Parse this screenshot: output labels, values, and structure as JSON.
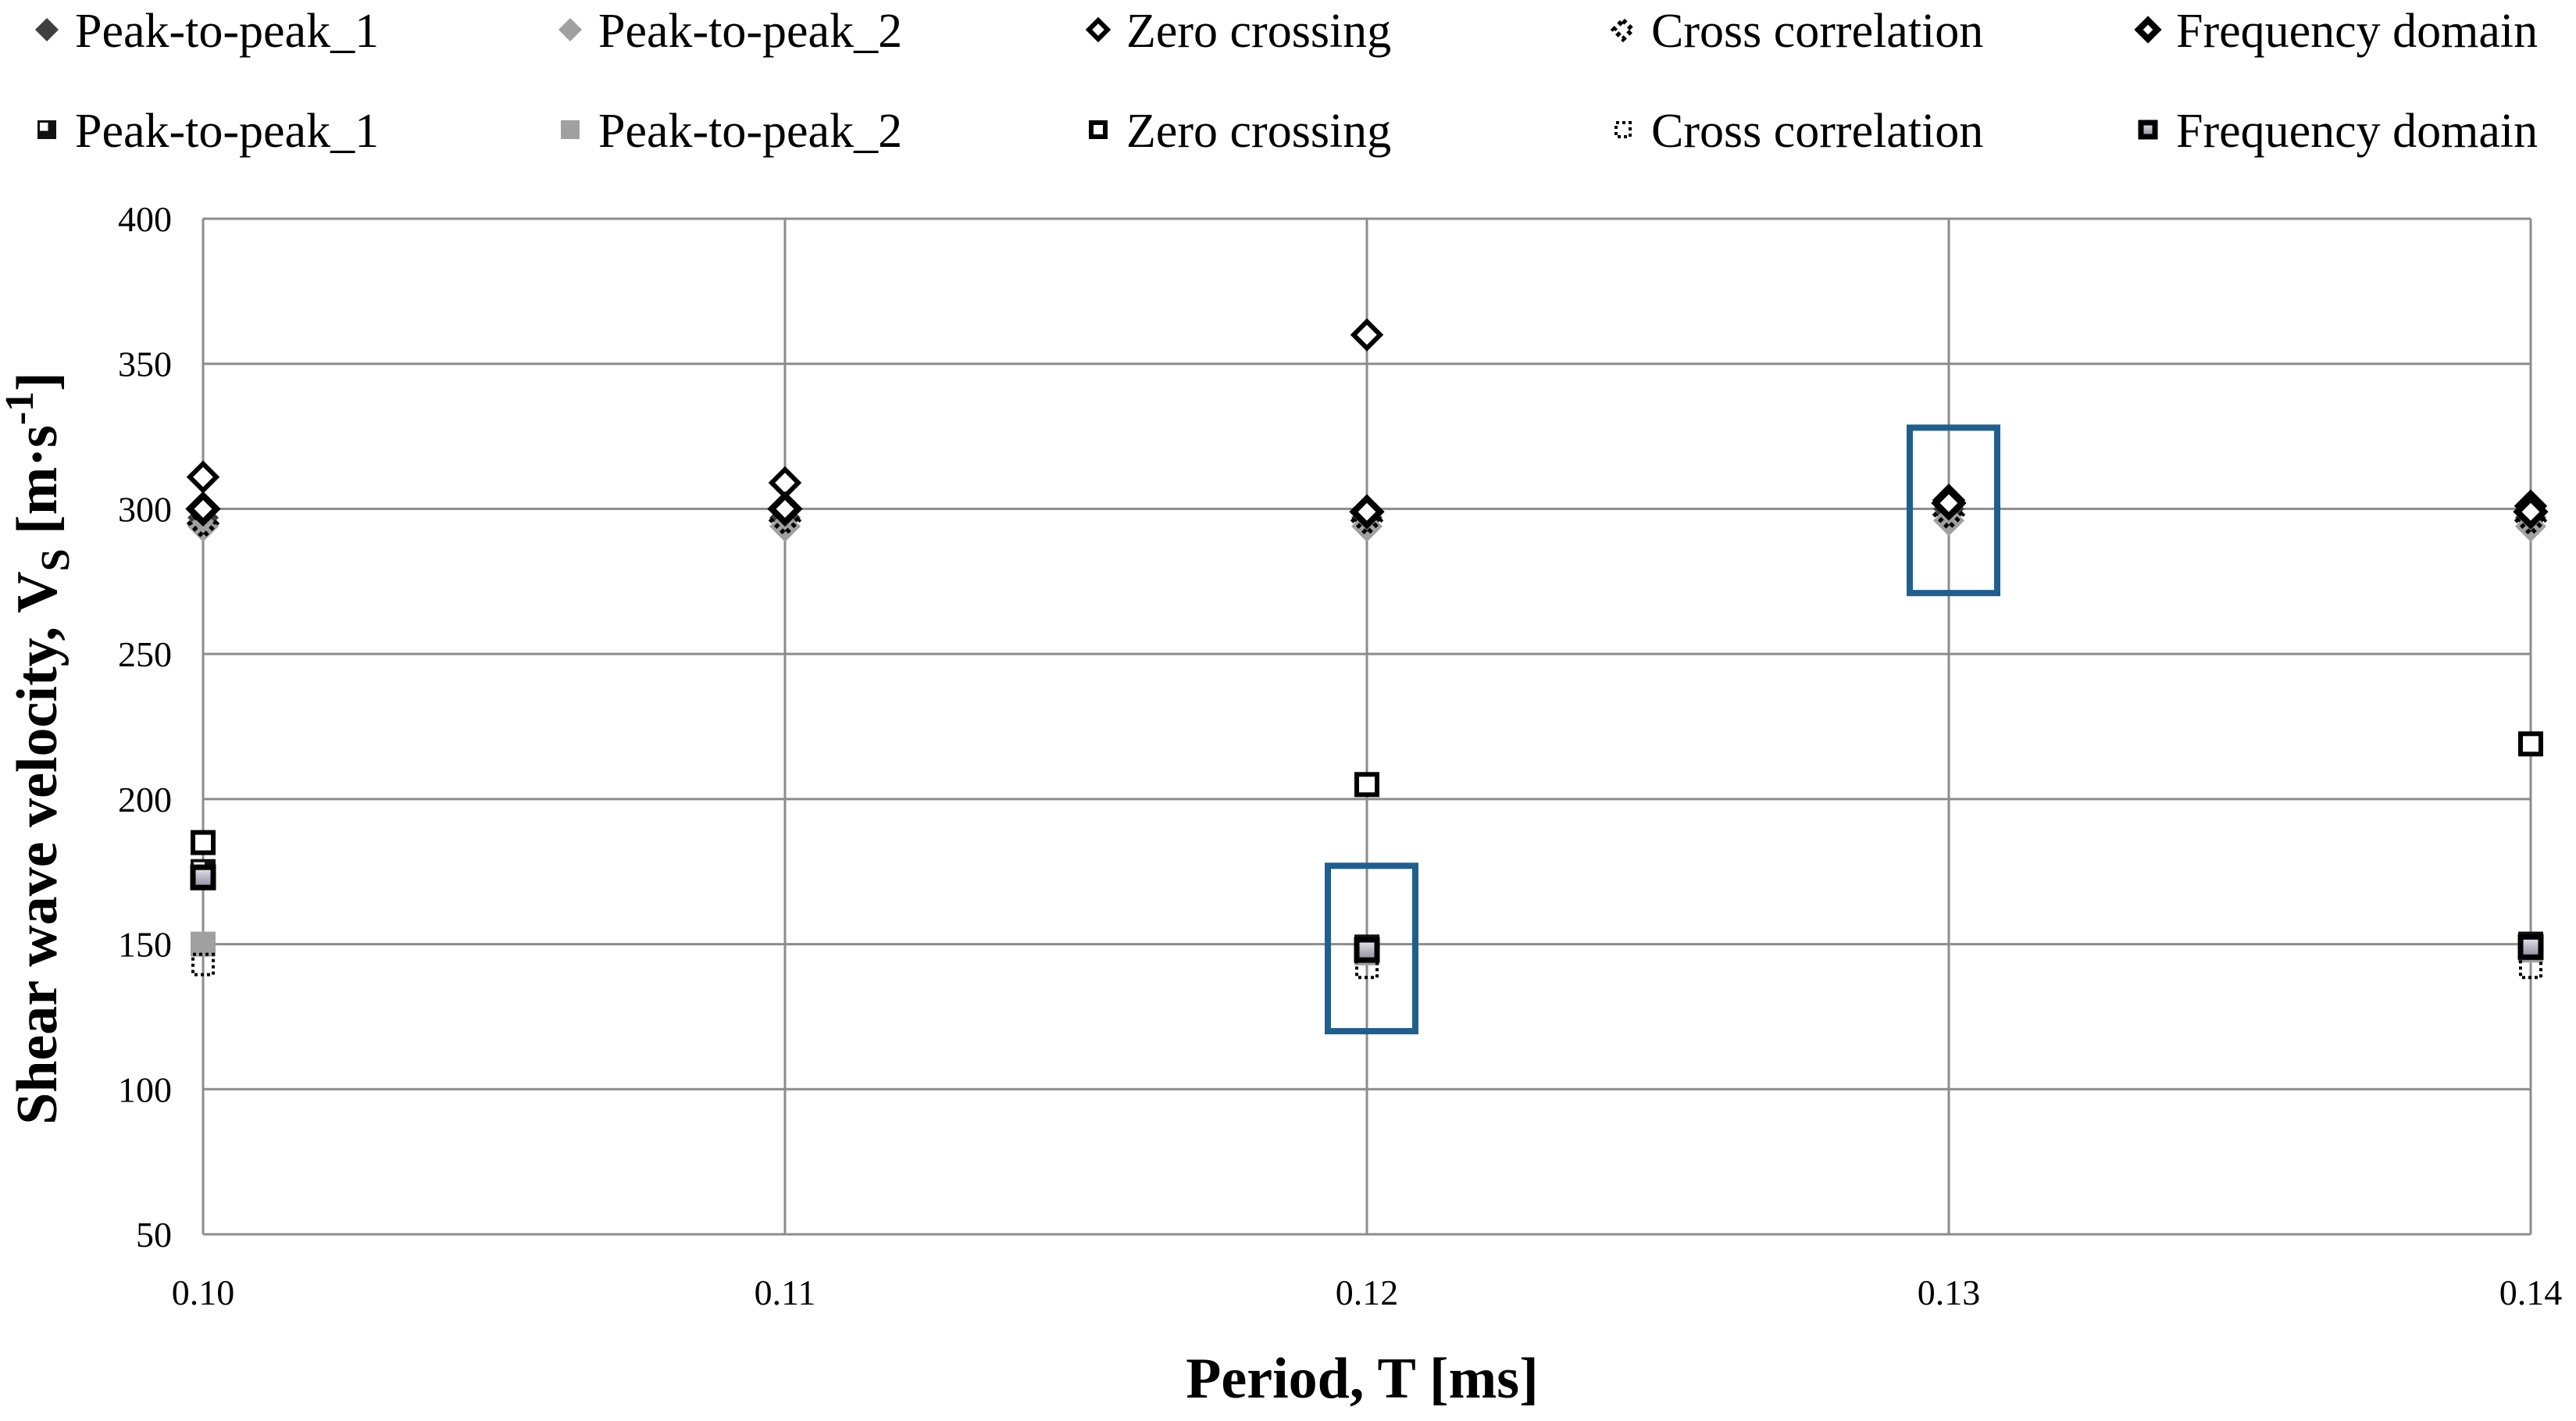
{
  "chart_data": {
    "type": "scatter",
    "title": "",
    "xlabel": "Period, T [ms]",
    "ylabel": {
      "text": "Shear wave velocity, V",
      "subscript": "S",
      "units_open": " [m·s",
      "superscript": "-1",
      "units_close": "]"
    },
    "xlim": [
      0.1,
      0.14
    ],
    "ylim": [
      50,
      400
    ],
    "xticks": [
      0.1,
      0.11,
      0.12,
      0.13,
      0.14
    ],
    "xtick_labels": [
      "0.10",
      "0.11",
      "0.12",
      "0.13",
      "0.14"
    ],
    "yticks": [
      50,
      100,
      150,
      200,
      250,
      300,
      350,
      400
    ],
    "ytick_labels": [
      "50",
      "100",
      "150",
      "200",
      "250",
      "300",
      "350",
      "400"
    ],
    "grid": true,
    "legend_position": "top",
    "series": [
      {
        "name": "Peak-to-peak_1",
        "group": "diamond",
        "marker": "diamond-filled-dark",
        "x": [
          0.1,
          0.11,
          0.12,
          0.13,
          0.14
        ],
        "y": [
          297,
          297,
          297,
          300,
          297
        ]
      },
      {
        "name": "Peak-to-peak_2",
        "group": "diamond",
        "marker": "diamond-filled-gray",
        "x": [
          0.1,
          0.11,
          0.12,
          0.13,
          0.14
        ],
        "y": [
          294,
          294,
          294,
          296,
          294
        ]
      },
      {
        "name": "Zero crossing",
        "group": "diamond",
        "marker": "diamond-open",
        "x": [
          0.1,
          0.11,
          0.12,
          0.13,
          0.14
        ],
        "y": [
          311,
          309,
          360,
          303,
          301
        ]
      },
      {
        "name": "Cross correlation",
        "group": "diamond",
        "marker": "diamond-dotted",
        "x": [
          0.1,
          0.11,
          0.12,
          0.13,
          0.14
        ],
        "y": [
          295,
          296,
          296,
          298,
          296
        ]
      },
      {
        "name": "Frequency domain",
        "group": "diamond",
        "marker": "diamond-open-bold",
        "x": [
          0.1,
          0.11,
          0.12,
          0.13,
          0.14
        ],
        "y": [
          300,
          300,
          299,
          302,
          299
        ]
      },
      {
        "name": "Peak-to-peak_1",
        "group": "square",
        "marker": "square-filled-dark",
        "x": [
          0.1,
          0.12,
          0.14
        ],
        "y": [
          175,
          149,
          150
        ]
      },
      {
        "name": "Peak-to-peak_2",
        "group": "square",
        "marker": "square-filled-gray",
        "x": [
          0.1,
          0.12,
          0.14
        ],
        "y": [
          150,
          147,
          148
        ]
      },
      {
        "name": "Zero crossing",
        "group": "square",
        "marker": "square-open",
        "x": [
          0.1,
          0.12,
          0.14
        ],
        "y": [
          185,
          205,
          219
        ]
      },
      {
        "name": "Cross correlation",
        "group": "square",
        "marker": "square-dotted",
        "x": [
          0.1,
          0.12,
          0.14
        ],
        "y": [
          143,
          142,
          142
        ]
      },
      {
        "name": "Frequency domain",
        "group": "square",
        "marker": "square-gradient",
        "x": [
          0.1,
          0.12,
          0.14
        ],
        "y": [
          173,
          148,
          149
        ]
      }
    ],
    "highlights": [
      {
        "label": "selected",
        "x": 0.12,
        "y_range": [
          120,
          177
        ]
      },
      {
        "label": "selected",
        "x": 0.13,
        "y_range": [
          271,
          328
        ]
      }
    ],
    "colors": {
      "grid": "#8c8c8c",
      "dark_marker": "#3f3f3f",
      "gray_marker": "#a0a0a0",
      "outline": "#000000",
      "highlight": "#1f5f8f"
    }
  }
}
